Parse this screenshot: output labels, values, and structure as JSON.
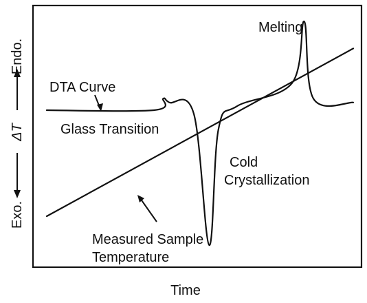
{
  "chart_data": {
    "type": "line",
    "title": "",
    "xlabel": "Time",
    "ylabel": {
      "top": "Endo.",
      "middle": "ΔT",
      "bottom": "Exo."
    },
    "x_ticks": "none",
    "y_ticks": "none",
    "grid": false,
    "series": [
      {
        "name": "DTA Curve",
        "description_points": [
          {
            "t": 0.0,
            "v": 0.5
          },
          {
            "t": 0.35,
            "v": 0.5
          },
          {
            "t": 0.38,
            "v": 0.56
          },
          {
            "t": 0.4,
            "v": 0.54
          },
          {
            "t": 0.48,
            "v": 0.48
          },
          {
            "t": 0.53,
            "v": -0.2
          },
          {
            "t": 0.56,
            "v": 0.4
          },
          {
            "t": 0.62,
            "v": 0.52
          },
          {
            "t": 0.8,
            "v": 0.64
          },
          {
            "t": 0.84,
            "v": 0.96
          },
          {
            "t": 0.87,
            "v": 0.56
          },
          {
            "t": 1.0,
            "v": 0.54
          }
        ]
      },
      {
        "name": "Measured Sample Temperature",
        "description_points": [
          {
            "t": 0.0,
            "v": -0.05
          },
          {
            "t": 1.0,
            "v": 0.82
          }
        ]
      }
    ],
    "annotations": [
      {
        "id": "dta-curve",
        "text": "DTA  Curve"
      },
      {
        "id": "glass-transition",
        "text": "Glass Transition"
      },
      {
        "id": "cold-crystallization-1",
        "text": "Cold"
      },
      {
        "id": "cold-crystallization-2",
        "text": "Crystallization"
      },
      {
        "id": "melting",
        "text": "Melting"
      },
      {
        "id": "measured-sample-1",
        "text": "Measured Sample"
      },
      {
        "id": "measured-sample-2",
        "text": "Temperature"
      }
    ],
    "colors": {
      "ink": "#111111",
      "background": "#ffffff"
    }
  }
}
